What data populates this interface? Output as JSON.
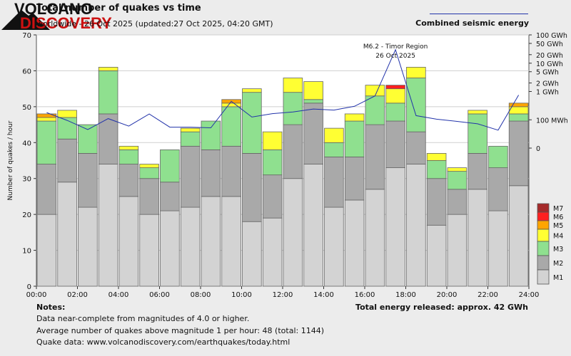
{
  "header": {
    "title": "Total number of quakes vs time",
    "subtitle": "worldwide - 26 Oct 2025 (updated:27 Oct 2025, 04:20 GMT)",
    "energy_legend_label": "Combined seismic energy"
  },
  "notes": {
    "title": "Notes:",
    "line1": "Data near-complete from magnitudes of 4.0 or higher.",
    "line2": "Average number of quakes above magnitude 1 per hour: 48 (total: 1144)",
    "line3": "Quake data: www.volcanodiscovery.com/earthquakes/today.html"
  },
  "energy_total": "Total energy released: approx. 42 GWh",
  "logo": {
    "line1": "VOLCANO",
    "line2": "DISCOVERY"
  },
  "colors": {
    "M1": "#d3d3d3",
    "M2": "#a9a9a9",
    "M3": "#8fe08f",
    "M4": "#ffff33",
    "M5": "#ffa500",
    "M6": "#ff2020",
    "M7": "#a52a2a",
    "energy_line": "#2233aa",
    "logo_red": "#cc1111"
  },
  "chart_data": {
    "type": "bar",
    "stacked": true,
    "ylabel": "Number of quakes / hour",
    "ylim": [
      0,
      70
    ],
    "y_ticks": [
      0,
      10,
      20,
      30,
      40,
      50,
      60,
      70
    ],
    "x_tick_labels": [
      "00:00",
      "02:00",
      "04:00",
      "06:00",
      "08:00",
      "10:00",
      "12:00",
      "14:00",
      "16:00",
      "18:00",
      "20:00",
      "22:00",
      "24:00"
    ],
    "hours": [
      "00",
      "01",
      "02",
      "03",
      "04",
      "05",
      "06",
      "07",
      "08",
      "09",
      "10",
      "11",
      "12",
      "13",
      "14",
      "15",
      "16",
      "17",
      "18",
      "19",
      "20",
      "21",
      "22",
      "23"
    ],
    "series": [
      {
        "name": "M1",
        "values": [
          20,
          29,
          22,
          34,
          25,
          20,
          21,
          22,
          25,
          25,
          18,
          19,
          30,
          34,
          22,
          24,
          27,
          33,
          34,
          17,
          20,
          27,
          21,
          28
        ]
      },
      {
        "name": "M2",
        "values": [
          14,
          12,
          15,
          14,
          9,
          10,
          8,
          17,
          13,
          14,
          19,
          12,
          15,
          17,
          14,
          12,
          18,
          13,
          9,
          13,
          7,
          10,
          12,
          18
        ]
      },
      {
        "name": "M3",
        "values": [
          12,
          6,
          8,
          12,
          4,
          3,
          9,
          4,
          8,
          11,
          17,
          7,
          9,
          1,
          4,
          10,
          8,
          5,
          15,
          5,
          5,
          11,
          6,
          2
        ]
      },
      {
        "name": "M4",
        "values": [
          1,
          2,
          0,
          1,
          1,
          1,
          0,
          1,
          0,
          1,
          1,
          5,
          4,
          5,
          4,
          2,
          3,
          4,
          3,
          2,
          1,
          1,
          0,
          2
        ]
      },
      {
        "name": "M5",
        "values": [
          1,
          0,
          0,
          0,
          0,
          0,
          0,
          0,
          0,
          1,
          0,
          0,
          0,
          0,
          0,
          0,
          0,
          0,
          0,
          0,
          0,
          0,
          0,
          1
        ]
      },
      {
        "name": "M6",
        "values": [
          0,
          0,
          0,
          0,
          0,
          0,
          0,
          0,
          0,
          0,
          0,
          0,
          0,
          0,
          0,
          0,
          0,
          1,
          0,
          0,
          0,
          0,
          0,
          0
        ]
      },
      {
        "name": "M7",
        "values": [
          0,
          0,
          0,
          0,
          0,
          0,
          0,
          0,
          0,
          0,
          0,
          0,
          0,
          0,
          0,
          0,
          0,
          0,
          0,
          0,
          0,
          0,
          0,
          0
        ]
      }
    ],
    "energy_axis": {
      "label_values_mwh": [
        10,
        100,
        1000,
        2000,
        5000,
        10000,
        20000,
        50000,
        100000
      ],
      "labels": [
        "0",
        "100 MWh",
        "1 GWh",
        "2 GWh",
        "5 GWh",
        "10 GWh",
        "20 GWh",
        "50 GWh",
        "100 GWh"
      ]
    },
    "energy_mwh": [
      180,
      95,
      45,
      110,
      60,
      160,
      55,
      55,
      52,
      450,
      125,
      165,
      190,
      240,
      220,
      300,
      700,
      30000,
      140,
      105,
      88,
      72,
      43,
      750
    ],
    "annotation": {
      "hour_index": 17,
      "line1": "M6.2 - Timor Region",
      "line2": "26 Oct 2025"
    },
    "legend": [
      "M7",
      "M6",
      "M5",
      "M4",
      "M3",
      "M2",
      "M1"
    ],
    "legend_position": "right"
  }
}
